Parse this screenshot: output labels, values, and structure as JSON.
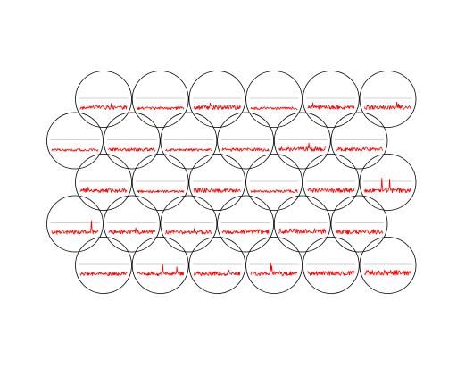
{
  "chart_data": {
    "type": "line",
    "title": "",
    "xlabel": "",
    "ylabel": "",
    "grid": false,
    "legend": "none",
    "colors": {
      "trace": "#ff0000",
      "circle": "#000000",
      "baseline": "#bfbfbf",
      "background": "#ffffff"
    },
    "ylim": [
      0,
      1
    ],
    "rows": [
      {
        "offset": "right",
        "cells": [
          {
            "peak": 0.38,
            "spike_count": 1
          },
          {
            "peak": 0.2,
            "spike_count": 0
          },
          {
            "peak": 0.4,
            "spike_count": 1
          },
          {
            "peak": 0.2,
            "spike_count": 0
          },
          {
            "peak": 0.42,
            "spike_count": 1
          },
          {
            "peak": 0.45,
            "spike_count": 2
          }
        ]
      },
      {
        "offset": "left",
        "cells": [
          {
            "peak": 0.18,
            "spike_count": 0
          },
          {
            "peak": 0.22,
            "spike_count": 0
          },
          {
            "peak": 0.18,
            "spike_count": 0
          },
          {
            "peak": 0.22,
            "spike_count": 0
          },
          {
            "peak": 0.48,
            "spike_count": 1
          },
          {
            "peak": 0.25,
            "spike_count": 0
          }
        ]
      },
      {
        "offset": "right",
        "cells": [
          {
            "peak": 0.35,
            "spike_count": 1
          },
          {
            "peak": 0.18,
            "spike_count": 0
          },
          {
            "peak": 0.28,
            "spike_count": 0
          },
          {
            "peak": 0.2,
            "spike_count": 0
          },
          {
            "peak": 0.3,
            "spike_count": 0
          },
          {
            "peak": 0.8,
            "spike_count": 2
          }
        ]
      },
      {
        "offset": "left",
        "cells": [
          {
            "peak": 0.75,
            "spike_count": 1
          },
          {
            "peak": 0.38,
            "spike_count": 1
          },
          {
            "peak": 0.35,
            "spike_count": 1
          },
          {
            "peak": 0.3,
            "spike_count": 0
          },
          {
            "peak": 0.35,
            "spike_count": 0
          },
          {
            "peak": 0.3,
            "spike_count": 0
          }
        ]
      },
      {
        "offset": "right",
        "cells": [
          {
            "peak": 0.25,
            "spike_count": 0
          },
          {
            "peak": 0.62,
            "spike_count": 2
          },
          {
            "peak": 0.35,
            "spike_count": 1
          },
          {
            "peak": 0.7,
            "spike_count": 2
          },
          {
            "peak": 0.3,
            "spike_count": 0
          },
          {
            "peak": 0.35,
            "spike_count": 0
          }
        ]
      }
    ]
  }
}
